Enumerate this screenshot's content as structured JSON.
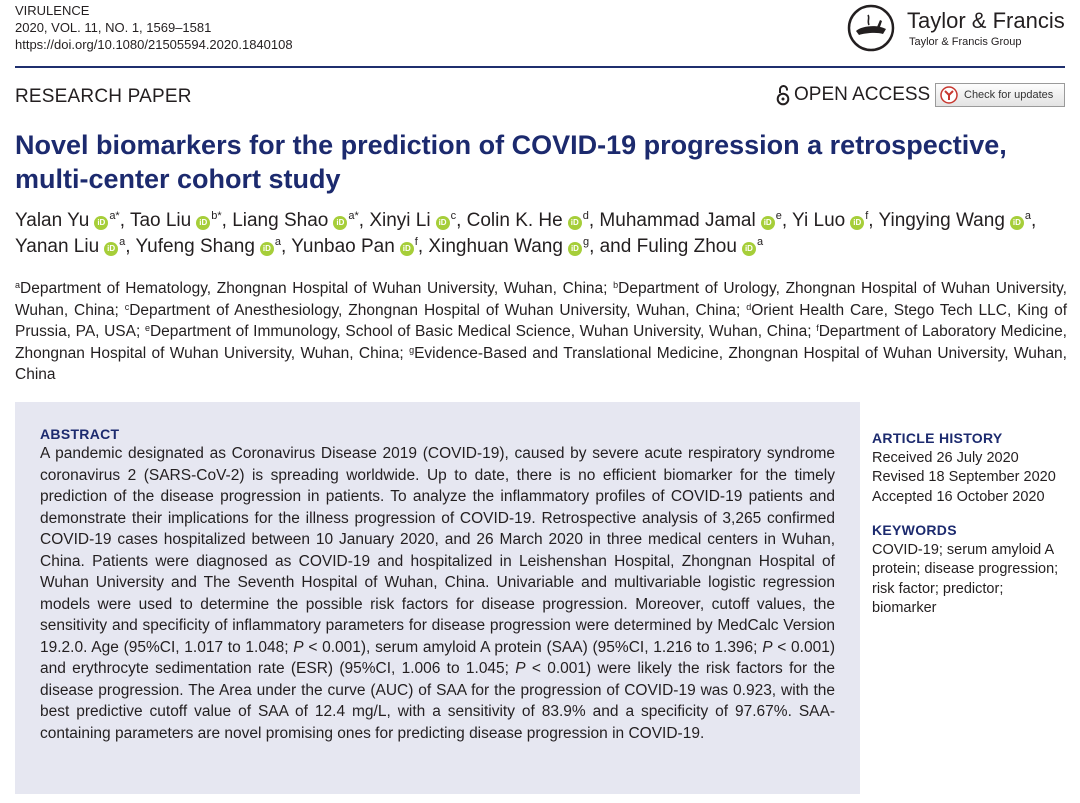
{
  "journal": {
    "name": "VIRULENCE",
    "citation": "2020, VOL. 11, NO. 1, 1569–1581",
    "doi": "https://doi.org/10.1080/21505594.2020.1840108"
  },
  "publisher": {
    "name": "Taylor & Francis",
    "group": "Taylor & Francis Group"
  },
  "article_type": "RESEARCH PAPER",
  "open_access": "OPEN ACCESS",
  "check_updates": "Check for updates",
  "title": "Novel biomarkers for the prediction of COVID-19 progression a retrospective, multi-center cohort study",
  "orcid_icon_text": "iD",
  "authors": [
    {
      "name": "Yalan Yu",
      "sup": "a*",
      "sep": ", "
    },
    {
      "name": "Tao Liu",
      "sup": "b*",
      "sep": ", "
    },
    {
      "name": "Liang Shao",
      "sup": "a*",
      "sep": ", "
    },
    {
      "name": "Xinyi Li",
      "sup": "c",
      "sep": ", "
    },
    {
      "name": "Colin K. He",
      "sup": "d",
      "sep": ", "
    },
    {
      "name": "Muhammad Jamal",
      "sup": "e",
      "sep": ", "
    },
    {
      "name": "Yi Luo",
      "sup": "f",
      "sep": ", "
    },
    {
      "name": "Yingying Wang",
      "sup": "a",
      "sep": ", "
    },
    {
      "name": "Yanan Liu",
      "sup": "a",
      "sep": ", "
    },
    {
      "name": "Yufeng Shang",
      "sup": "a",
      "sep": ", "
    },
    {
      "name": "Yunbao Pan",
      "sup": "f",
      "sep": ", "
    },
    {
      "name": "Xinghuan Wang",
      "sup": "g",
      "sep": ", and "
    },
    {
      "name": "Fuling Zhou",
      "sup": "a",
      "sep": ""
    }
  ],
  "affiliations": [
    {
      "sup": "a",
      "text": "Department of Hematology, Zhongnan Hospital of Wuhan University, Wuhan, China; "
    },
    {
      "sup": "b",
      "text": "Department of Urology, Zhongnan Hospital of Wuhan University, Wuhan, China; "
    },
    {
      "sup": "c",
      "text": "Department of Anesthesiology, Zhongnan Hospital of Wuhan University, Wuhan, China; "
    },
    {
      "sup": "d",
      "text": "Orient Health Care, Stego Tech LLC, King of Prussia, PA, USA; "
    },
    {
      "sup": "e",
      "text": "Department of Immunology, School of Basic Medical Science, Wuhan University, Wuhan, China; "
    },
    {
      "sup": "f",
      "text": "Department of Laboratory Medicine, Zhongnan Hospital of Wuhan University, Wuhan, China; "
    },
    {
      "sup": "g",
      "text": "Evidence-Based and Translational Medicine, Zhongnan Hospital of Wuhan University, Wuhan, China"
    }
  ],
  "abstract": {
    "heading": "ABSTRACT",
    "p1": "A pandemic designated as Coronavirus Disease 2019 (COVID-19), caused by severe acute respiratory syndrome coronavirus 2 (SARS-CoV-2) is spreading worldwide. Up to date, there is no efficient biomarker for the timely prediction of the disease progression in patients. To analyze the inflammatory profiles of COVID-19 patients and demonstrate their implications for the illness progression of COVID-19. Retrospective analysis of 3,265 confirmed COVID-19 cases hospitalized between 10 January 2020, and 26 March 2020 in three medical centers in Wuhan, China. Patients were diagnosed as COVID-19 and hospitalized in Leishenshan Hospital, Zhongnan Hospital of Wuhan University and The Seventh Hospital of Wuhan, China. Univariable and multivariable logistic regression models were used to determine the possible risk factors for disease progression. Moreover, cutoff values, the sensitivity and specificity of inflammatory parameters for disease progression were determined by MedCalc Version 19.2.0. Age (95%CI, 1.017 to 1.048; ",
    "p_italic": "P",
    "p2": " < 0.001), serum amyloid A protein (SAA) (95%CI, 1.216 to 1.396; ",
    "p3": " < 0.001) and erythrocyte sedimentation rate (ESR) (95%CI, 1.006 to 1.045; ",
    "p4": " < 0.001) were likely the risk factors for the disease progression. The Area under the curve (AUC) of SAA for the progression of COVID-19 was 0.923, with the best predictive cutoff value of SAA of 12.4 mg/L, with a sensitivity of 83.9% and a specificity of 97.67%. SAA-containing parameters are novel promising ones for predicting disease progression in COVID-19."
  },
  "article_history": {
    "heading": "ARTICLE HISTORY",
    "received": "Received 26 July 2020",
    "revised": "Revised 18 September 2020",
    "accepted": "Accepted 16 October 2020"
  },
  "keywords": {
    "heading": "KEYWORDS",
    "text": "COVID-19; serum amyloid A protein; disease progression; risk factor; predictor; biomarker"
  },
  "colors": {
    "title_blue": "#1c2a6e",
    "abstract_bg": "#e6e7f1",
    "orcid_green": "#a6ce39"
  }
}
